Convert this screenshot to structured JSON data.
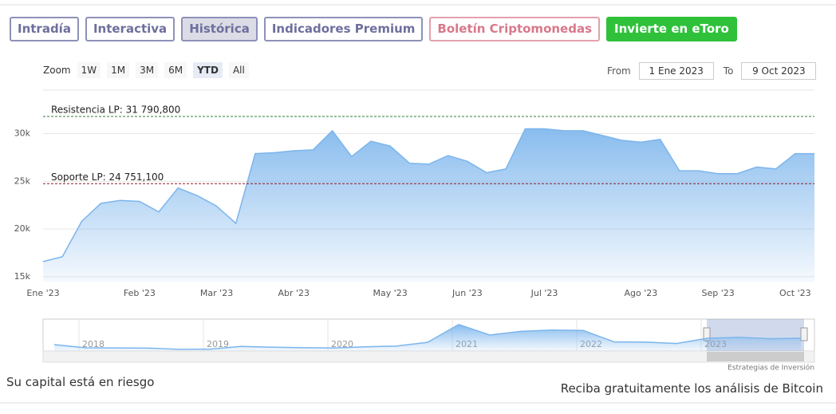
{
  "tabs": {
    "items": [
      "Intradía",
      "Interactiva",
      "Histórica",
      "Indicadores Premium",
      "Boletín Criptomonedas",
      "Invierte en eToro"
    ],
    "selected": 2
  },
  "zoom": {
    "label": "Zoom",
    "buttons": [
      "1W",
      "1M",
      "3M",
      "6M",
      "YTD",
      "All"
    ],
    "selected": 4
  },
  "range": {
    "from_label": "From",
    "from": "1 Ene 2023",
    "to_label": "To",
    "to": "9 Oct 2023"
  },
  "chart_data": [
    {
      "type": "area",
      "color": "#7cb5ec",
      "categories": [
        "Ene '23",
        null,
        null,
        null,
        null,
        "Feb '23",
        null,
        null,
        null,
        "Mar '23",
        null,
        null,
        null,
        "Abr '23",
        null,
        null,
        null,
        null,
        "May '23",
        null,
        null,
        null,
        "Jun '23",
        null,
        null,
        null,
        "Jul '23",
        null,
        null,
        null,
        null,
        "Ago '23",
        null,
        null,
        null,
        "Sep '23",
        null,
        null,
        null,
        "Oct '23",
        null
      ],
      "values": [
        16600,
        17100,
        20800,
        22700,
        23000,
        22900,
        21800,
        24300,
        23500,
        22400,
        20600,
        27900,
        28000,
        28200,
        28300,
        30300,
        27600,
        29200,
        28700,
        26900,
        26800,
        27700,
        27100,
        25900,
        26300,
        30500,
        30500,
        30300,
        30300,
        29800,
        29300,
        29100,
        29400,
        26100,
        26100,
        25800,
        25800,
        26500,
        26300,
        27900,
        27900
      ],
      "ylim": [
        14500,
        34550
      ],
      "yticks": [
        {
          "value": 15000,
          "label": "15k"
        },
        {
          "value": 20000,
          "label": "20k"
        },
        {
          "value": 25000,
          "label": "25k"
        },
        {
          "value": 30000,
          "label": "30k"
        }
      ],
      "grid": true,
      "reference_lines": [
        {
          "label": "Resistencia LP: 31 790,800",
          "value": 31790.8,
          "color": "#2e7d32"
        },
        {
          "label": "Soporte LP: 24 751,100",
          "value": 24751.1,
          "color": "#8b1a2b"
        }
      ]
    },
    {
      "type": "area",
      "color": "#7cb5ec",
      "categories": [
        null,
        "2018",
        null,
        null,
        null,
        "2019",
        null,
        null,
        null,
        "2020",
        null,
        null,
        null,
        "2021",
        null,
        null,
        null,
        "2022",
        null,
        null,
        null,
        "2023",
        null,
        null,
        null
      ],
      "values": [
        14000,
        7000,
        6500,
        6300,
        3800,
        4000,
        10000,
        8300,
        7200,
        6500,
        9200,
        10800,
        19000,
        58000,
        35000,
        43000,
        46000,
        45000,
        20000,
        19500,
        16500,
        28000,
        30000,
        27000,
        27900
      ],
      "ylim": [
        0,
        70000
      ]
    }
  ],
  "credit": "Estrategias de Inversión",
  "footer": {
    "left": "Su capital está en riesgo",
    "right": "Reciba gratuitamente los análisis de Bitcoin"
  }
}
